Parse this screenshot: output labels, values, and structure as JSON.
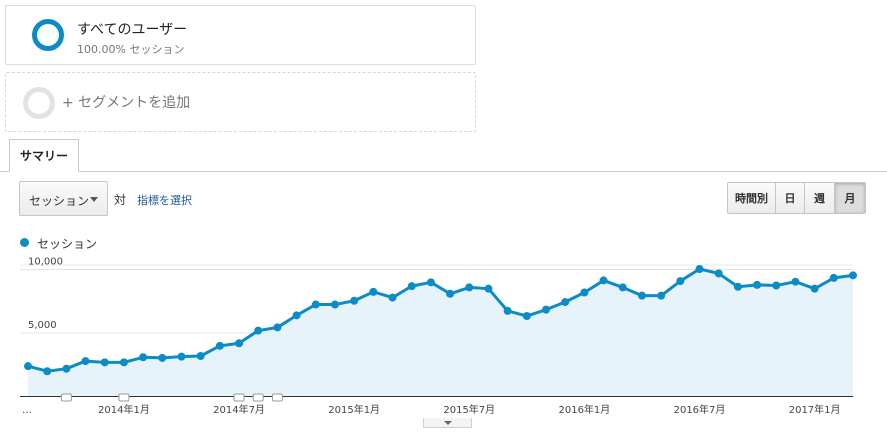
{
  "segments": {
    "primary": {
      "title": "すべてのユーザー",
      "subtitle": "100.00% セッション"
    },
    "add_label": "+ セグメントを追加"
  },
  "tabs": [
    {
      "label": "サマリー"
    }
  ],
  "controls": {
    "metric_select": "セッション",
    "vs_label": "対",
    "choose_metric": "指標を選択",
    "granularity": [
      {
        "label": "時間別",
        "active": false
      },
      {
        "label": "日",
        "active": false
      },
      {
        "label": "週",
        "active": false
      },
      {
        "label": "月",
        "active": true
      }
    ]
  },
  "legend": {
    "label": "セッション",
    "color": "#0c8bc5"
  },
  "chart_data": {
    "type": "area",
    "series": [
      {
        "name": "セッション",
        "color": "#0c8bc5",
        "values": [
          2350,
          1950,
          2150,
          2750,
          2650,
          2650,
          3050,
          3000,
          3100,
          3150,
          3950,
          4150,
          5150,
          5400,
          6350,
          7200,
          7200,
          7500,
          8200,
          7750,
          8650,
          8950,
          8050,
          8550,
          8450,
          6700,
          6300,
          6800,
          7400,
          8150,
          9100,
          8550,
          7900,
          7900,
          9050,
          10000,
          9650,
          8600,
          8750,
          8700,
          9000,
          8450,
          9300,
          9500
        ]
      }
    ],
    "x_tick_labels": [
      "2014年1月",
      "2014年7月",
      "2015年1月",
      "2015年7月",
      "2016年1月",
      "2016年7月",
      "2017年1月"
    ],
    "x_tick_indices": [
      5,
      11,
      17,
      23,
      29,
      35,
      41
    ],
    "x_leading_label": "…",
    "y_tick_labels": [
      "10,000",
      "5,000"
    ],
    "y_tick_values": [
      10000,
      5000
    ],
    "ylim": [
      0,
      10000
    ],
    "annotation_marker_indices": [
      2,
      5,
      11,
      12,
      13
    ],
    "grid": true,
    "area_fill": "#e6f3fa"
  }
}
